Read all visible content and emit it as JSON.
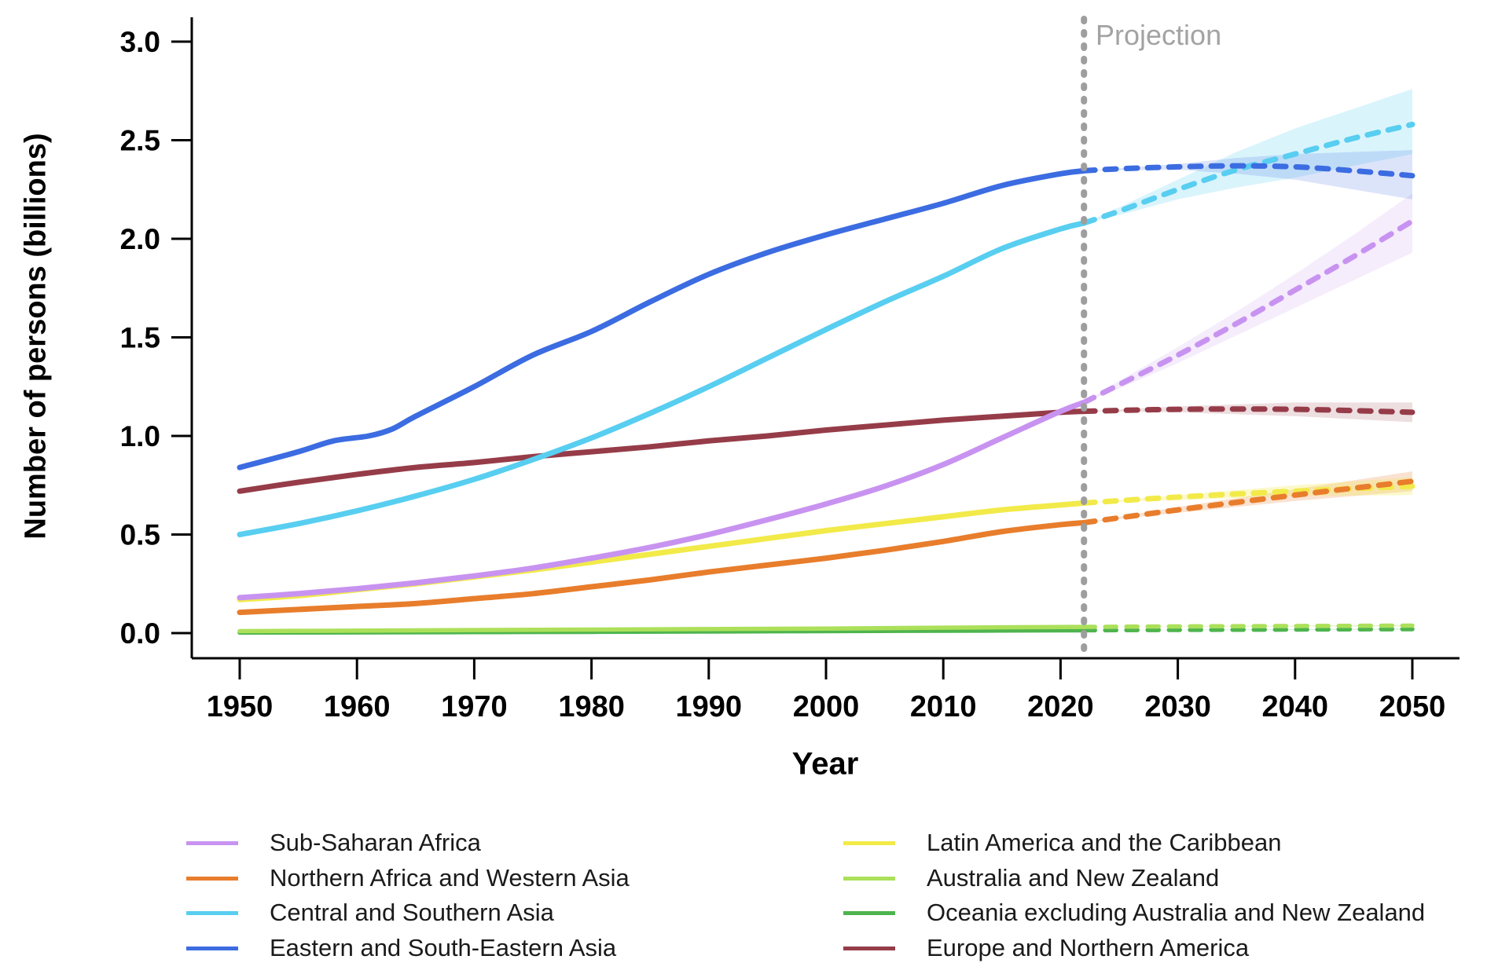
{
  "figure": {
    "ylabel": "Number of persons (billions)",
    "xlabel": "Year",
    "projection_label": "Projection"
  },
  "colors": {
    "axis": "#000000",
    "projection_line": "#9e9e9e",
    "projection_label_text": "#a3a3a3",
    "legend_text": "#1a1a1a"
  },
  "chart_data": {
    "type": "line",
    "title": "",
    "xlabel": "Year",
    "ylabel": "Number of persons (billions)",
    "xlim": [
      1944,
      2056
    ],
    "ylim": [
      0,
      3.1
    ],
    "x_ticks": [
      1950,
      1960,
      1970,
      1980,
      1990,
      2000,
      2010,
      2020,
      2030,
      2040,
      2050
    ],
    "y_ticks": [
      0.0,
      0.5,
      1.0,
      1.5,
      2.0,
      2.5,
      3.0
    ],
    "y_tick_labels": [
      "0.0",
      "0.5",
      "1.0",
      "1.5",
      "2.0",
      "2.5",
      "3.0"
    ],
    "grid": false,
    "projection_start": 2022,
    "projection_label": "Projection",
    "legend_position": "bottom-two-columns",
    "legend_columns": [
      [
        "Sub-Saharan Africa",
        "Northern Africa and Western Asia",
        "Central and Southern Asia",
        "Eastern and South-Eastern Asia"
      ],
      [
        "Latin America and the Caribbean",
        "Australia and New Zealand",
        "Oceania excluding Australia and New Zealand",
        "Europe and Northern America"
      ]
    ],
    "series": [
      {
        "name": "Sub-Saharan Africa",
        "color": "#c893f0",
        "band_color": "rgba(200,147,240,0.18)",
        "observed": [
          [
            1950,
            0.18
          ],
          [
            1955,
            0.2
          ],
          [
            1960,
            0.225
          ],
          [
            1965,
            0.255
          ],
          [
            1970,
            0.29
          ],
          [
            1975,
            0.33
          ],
          [
            1980,
            0.38
          ],
          [
            1985,
            0.435
          ],
          [
            1990,
            0.5
          ],
          [
            1995,
            0.575
          ],
          [
            2000,
            0.655
          ],
          [
            2005,
            0.745
          ],
          [
            2010,
            0.855
          ],
          [
            2015,
            0.99
          ],
          [
            2020,
            1.125
          ],
          [
            2022,
            1.17
          ]
        ],
        "projected": [
          [
            2022,
            1.17
          ],
          [
            2025,
            1.26
          ],
          [
            2030,
            1.41
          ],
          [
            2035,
            1.57
          ],
          [
            2040,
            1.74
          ],
          [
            2045,
            1.91
          ],
          [
            2050,
            2.09
          ]
        ],
        "band": [
          [
            2022,
            1.17,
            1.17
          ],
          [
            2025,
            1.24,
            1.28
          ],
          [
            2030,
            1.37,
            1.45
          ],
          [
            2035,
            1.51,
            1.63
          ],
          [
            2040,
            1.65,
            1.82
          ],
          [
            2045,
            1.79,
            2.02
          ],
          [
            2050,
            1.93,
            2.23
          ]
        ]
      },
      {
        "name": "Northern Africa and Western Asia",
        "color": "#e87d2c",
        "band_color": "rgba(232,125,44,0.22)",
        "observed": [
          [
            1950,
            0.105
          ],
          [
            1955,
            0.12
          ],
          [
            1960,
            0.135
          ],
          [
            1965,
            0.15
          ],
          [
            1970,
            0.175
          ],
          [
            1975,
            0.2
          ],
          [
            1980,
            0.235
          ],
          [
            1985,
            0.27
          ],
          [
            1990,
            0.31
          ],
          [
            1995,
            0.345
          ],
          [
            2000,
            0.38
          ],
          [
            2005,
            0.42
          ],
          [
            2010,
            0.465
          ],
          [
            2015,
            0.515
          ],
          [
            2020,
            0.55
          ],
          [
            2022,
            0.56
          ]
        ],
        "projected": [
          [
            2022,
            0.56
          ],
          [
            2030,
            0.625
          ],
          [
            2040,
            0.7
          ],
          [
            2050,
            0.77
          ]
        ],
        "band": [
          [
            2022,
            0.56,
            0.56
          ],
          [
            2030,
            0.61,
            0.64
          ],
          [
            2040,
            0.67,
            0.73
          ],
          [
            2050,
            0.72,
            0.82
          ]
        ]
      },
      {
        "name": "Central and Southern Asia",
        "color": "#58cef0",
        "band_color": "rgba(88,206,240,0.22)",
        "observed": [
          [
            1950,
            0.5
          ],
          [
            1955,
            0.555
          ],
          [
            1960,
            0.62
          ],
          [
            1965,
            0.695
          ],
          [
            1970,
            0.78
          ],
          [
            1975,
            0.88
          ],
          [
            1980,
            0.99
          ],
          [
            1985,
            1.115
          ],
          [
            1990,
            1.25
          ],
          [
            1995,
            1.395
          ],
          [
            2000,
            1.54
          ],
          [
            2005,
            1.68
          ],
          [
            2010,
            1.81
          ],
          [
            2015,
            1.95
          ],
          [
            2020,
            2.05
          ],
          [
            2022,
            2.08
          ]
        ],
        "projected": [
          [
            2022,
            2.08
          ],
          [
            2025,
            2.14
          ],
          [
            2030,
            2.25
          ],
          [
            2035,
            2.35
          ],
          [
            2040,
            2.43
          ],
          [
            2045,
            2.51
          ],
          [
            2050,
            2.58
          ]
        ],
        "band": [
          [
            2022,
            2.08,
            2.08
          ],
          [
            2025,
            2.12,
            2.16
          ],
          [
            2030,
            2.2,
            2.3
          ],
          [
            2035,
            2.26,
            2.44
          ],
          [
            2040,
            2.31,
            2.56
          ],
          [
            2045,
            2.37,
            2.66
          ],
          [
            2050,
            2.43,
            2.76
          ]
        ]
      },
      {
        "name": "Eastern and South-Eastern Asia",
        "color": "#3c6ce1",
        "band_color": "rgba(60,108,225,0.18)",
        "observed": [
          [
            1950,
            0.84
          ],
          [
            1955,
            0.92
          ],
          [
            1958,
            0.975
          ],
          [
            1961,
            1.0
          ],
          [
            1963,
            1.035
          ],
          [
            1965,
            1.1
          ],
          [
            1970,
            1.25
          ],
          [
            1975,
            1.41
          ],
          [
            1980,
            1.53
          ],
          [
            1985,
            1.68
          ],
          [
            1990,
            1.82
          ],
          [
            1995,
            1.93
          ],
          [
            2000,
            2.02
          ],
          [
            2005,
            2.1
          ],
          [
            2010,
            2.18
          ],
          [
            2015,
            2.27
          ],
          [
            2020,
            2.33
          ],
          [
            2022,
            2.345
          ]
        ],
        "projected": [
          [
            2022,
            2.345
          ],
          [
            2025,
            2.355
          ],
          [
            2030,
            2.365
          ],
          [
            2035,
            2.37
          ],
          [
            2040,
            2.365
          ],
          [
            2045,
            2.345
          ],
          [
            2050,
            2.32
          ]
        ],
        "band": [
          [
            2022,
            2.345,
            2.345
          ],
          [
            2030,
            2.35,
            2.38
          ],
          [
            2035,
            2.33,
            2.41
          ],
          [
            2040,
            2.3,
            2.43
          ],
          [
            2045,
            2.25,
            2.44
          ],
          [
            2050,
            2.2,
            2.45
          ]
        ]
      },
      {
        "name": "Latin America and the Caribbean",
        "color": "#f2ea49",
        "band_color": "rgba(242,234,73,0.28)",
        "observed": [
          [
            1950,
            0.17
          ],
          [
            1955,
            0.19
          ],
          [
            1960,
            0.22
          ],
          [
            1965,
            0.25
          ],
          [
            1970,
            0.285
          ],
          [
            1975,
            0.32
          ],
          [
            1980,
            0.36
          ],
          [
            1985,
            0.4
          ],
          [
            1990,
            0.44
          ],
          [
            1995,
            0.48
          ],
          [
            2000,
            0.52
          ],
          [
            2005,
            0.555
          ],
          [
            2010,
            0.59
          ],
          [
            2015,
            0.625
          ],
          [
            2020,
            0.65
          ],
          [
            2022,
            0.66
          ]
        ],
        "projected": [
          [
            2022,
            0.66
          ],
          [
            2030,
            0.69
          ],
          [
            2040,
            0.72
          ],
          [
            2050,
            0.745
          ]
        ],
        "band": [
          [
            2022,
            0.66,
            0.66
          ],
          [
            2030,
            0.675,
            0.7
          ],
          [
            2040,
            0.695,
            0.75
          ],
          [
            2050,
            0.7,
            0.79
          ]
        ]
      },
      {
        "name": "Australia and New Zealand",
        "color": "#ace05a",
        "band_color": "rgba(172,224,90,0.25)",
        "observed": [
          [
            1950,
            0.01
          ],
          [
            1960,
            0.0125
          ],
          [
            1970,
            0.0155
          ],
          [
            1980,
            0.018
          ],
          [
            1990,
            0.0205
          ],
          [
            2000,
            0.023
          ],
          [
            2010,
            0.0275
          ],
          [
            2020,
            0.031
          ],
          [
            2022,
            0.0315
          ]
        ],
        "projected": [
          [
            2022,
            0.0315
          ],
          [
            2030,
            0.034
          ],
          [
            2040,
            0.036
          ],
          [
            2050,
            0.038
          ]
        ],
        "band": [
          [
            2022,
            0.0315,
            0.0315
          ],
          [
            2050,
            0.034,
            0.043
          ]
        ]
      },
      {
        "name": "Oceania excluding Australia and New Zealand",
        "color": "#4eb44e",
        "band_color": "rgba(78,180,78,0.25)",
        "observed": [
          [
            1950,
            0.0026
          ],
          [
            1960,
            0.0035
          ],
          [
            1970,
            0.0048
          ],
          [
            1980,
            0.0062
          ],
          [
            1990,
            0.008
          ],
          [
            2000,
            0.01
          ],
          [
            2010,
            0.012
          ],
          [
            2020,
            0.0138
          ],
          [
            2022,
            0.0142
          ]
        ],
        "projected": [
          [
            2022,
            0.0142
          ],
          [
            2030,
            0.016
          ],
          [
            2040,
            0.018
          ],
          [
            2050,
            0.02
          ]
        ],
        "band": [
          [
            2022,
            0.0142,
            0.0142
          ],
          [
            2050,
            0.018,
            0.023
          ]
        ]
      },
      {
        "name": "Europe and Northern America",
        "color": "#963c49",
        "band_color": "rgba(150,60,73,0.17)",
        "observed": [
          [
            1950,
            0.72
          ],
          [
            1955,
            0.765
          ],
          [
            1960,
            0.805
          ],
          [
            1965,
            0.84
          ],
          [
            1970,
            0.865
          ],
          [
            1975,
            0.895
          ],
          [
            1980,
            0.92
          ],
          [
            1985,
            0.945
          ],
          [
            1990,
            0.975
          ],
          [
            1995,
            1.0
          ],
          [
            2000,
            1.03
          ],
          [
            2005,
            1.055
          ],
          [
            2010,
            1.08
          ],
          [
            2015,
            1.1
          ],
          [
            2020,
            1.12
          ],
          [
            2022,
            1.125
          ]
        ],
        "projected": [
          [
            2022,
            1.125
          ],
          [
            2030,
            1.135
          ],
          [
            2040,
            1.135
          ],
          [
            2050,
            1.12
          ]
        ],
        "band": [
          [
            2022,
            1.125,
            1.125
          ],
          [
            2030,
            1.12,
            1.15
          ],
          [
            2040,
            1.1,
            1.17
          ],
          [
            2050,
            1.07,
            1.17
          ]
        ]
      }
    ]
  }
}
